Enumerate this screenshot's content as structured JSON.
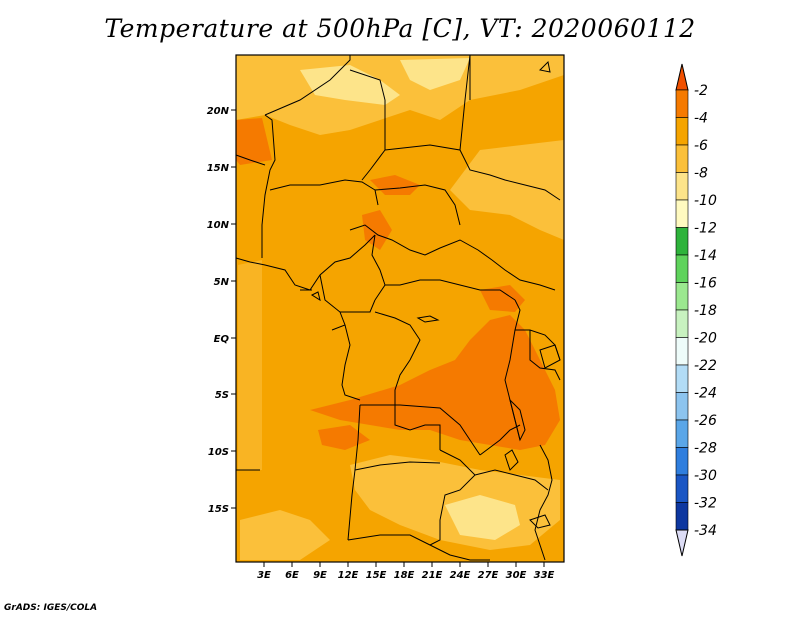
{
  "title": "Temperature at 500hPa [C], VT: 2020060112",
  "credit": "GrADS: IGES/COLA",
  "map": {
    "lon_labels": [
      "3E",
      "6E",
      "9E",
      "12E",
      "15E",
      "18E",
      "21E",
      "24E",
      "27E",
      "30E",
      "33E"
    ],
    "lat_labels": [
      "20N",
      "15N",
      "10N",
      "5N",
      "EQ",
      "5S",
      "10S",
      "15S"
    ],
    "colors": {
      "frame": "#000000",
      "base": "#f5a400",
      "warm": "#f57a00",
      "cool": "#fbc03a",
      "coolest": "#fde48a"
    }
  },
  "colorbar": {
    "labels": [
      "-2",
      "-4",
      "-6",
      "-8",
      "-10",
      "-12",
      "-14",
      "-16",
      "-18",
      "-20",
      "-22",
      "-24",
      "-26",
      "-28",
      "-30",
      "-32",
      "-34"
    ],
    "colors": [
      "#f05000",
      "#f57a00",
      "#f5a400",
      "#fbc03a",
      "#fde48a",
      "#fffac0",
      "#2eb33b",
      "#5fd35c",
      "#9be88f",
      "#c8f2c0",
      "#eefcfa",
      "#b2dcf6",
      "#8cc4ef",
      "#5aa6e8",
      "#2f7ede",
      "#1a56c4",
      "#0d37a0",
      "#0a1a72",
      "#dcdcf5"
    ]
  }
}
